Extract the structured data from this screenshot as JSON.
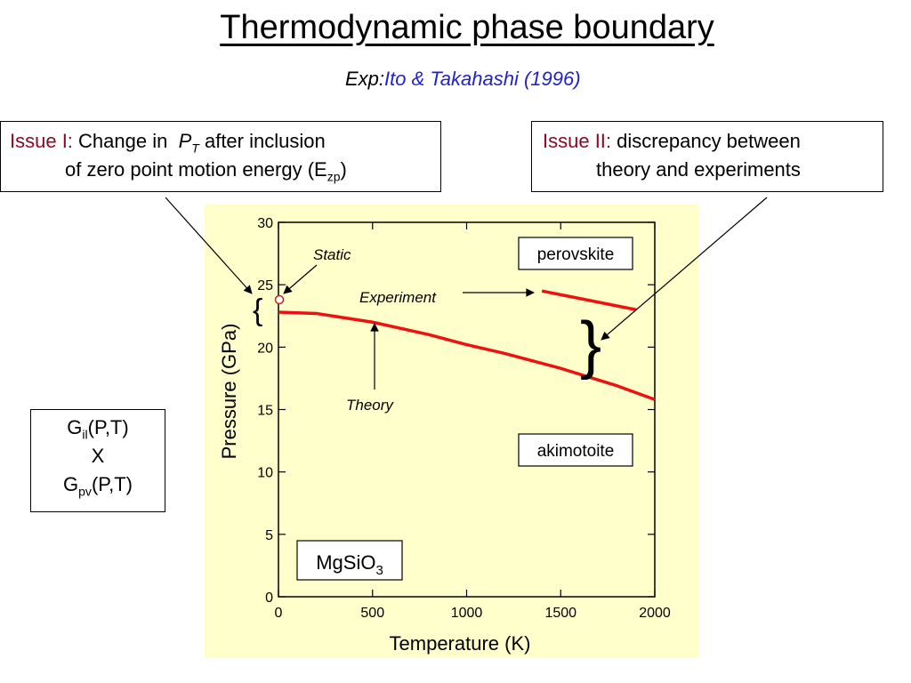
{
  "title": "Thermodynamic phase boundary",
  "subtitle": {
    "prefix": "Exp:",
    "reference": "Ito & Takahashi (1996)",
    "ref_color": "#2222cc"
  },
  "issue1": {
    "head": "Issue I:",
    "line1_a": "Change in",
    "symbol": "P",
    "symbol_sub": "T",
    "line1_b": "after  inclusion",
    "line2": "of zero point motion energy (E",
    "line2_sub": "zp",
    "line2_end": ")"
  },
  "issue2": {
    "head": "Issue II:",
    "line1": "discrepancy between",
    "line2": "theory and experiments"
  },
  "gibbs": {
    "l1": "G",
    "l1_sub": "il",
    "l1_end": "(P,T)",
    "l2": "X",
    "l3": "G",
    "l3_sub": "pv",
    "l3_end": "(P,T)"
  },
  "colors": {
    "plot_bg": "#ffffcc",
    "curve": "#ee1111",
    "issue_head": "#8b0a24"
  },
  "chart_data": {
    "type": "line",
    "xlabel": "Temperature (K)",
    "ylabel": "Pressure (GPa)",
    "xlim": [
      0,
      2000
    ],
    "ylim": [
      0,
      30
    ],
    "xticks": [
      0,
      500,
      1000,
      1500,
      2000
    ],
    "yticks": [
      0,
      5,
      10,
      15,
      20,
      25,
      30
    ],
    "series": [
      {
        "name": "Theory",
        "x": [
          0,
          200,
          500,
          800,
          1000,
          1200,
          1500,
          1800,
          2000
        ],
        "y": [
          22.8,
          22.7,
          22.0,
          21.0,
          20.2,
          19.5,
          18.3,
          16.9,
          15.8
        ]
      },
      {
        "name": "Experiment",
        "x": [
          1400,
          1900
        ],
        "y": [
          24.5,
          23.0
        ]
      }
    ],
    "static_point": {
      "label": "Static",
      "x": 0,
      "y": 23.8
    },
    "phase_labels": {
      "upper": "perovskite",
      "lower": "akimotoite"
    },
    "compound": {
      "base": "MgSiO",
      "sub": "3"
    }
  }
}
